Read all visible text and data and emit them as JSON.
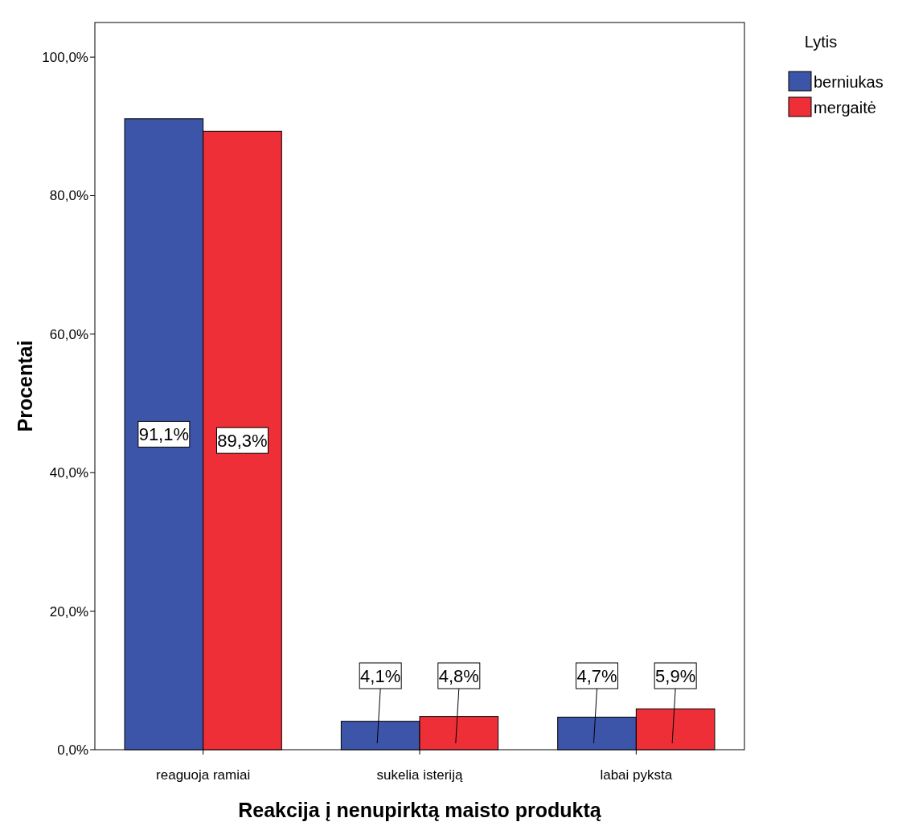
{
  "chart_data": {
    "type": "bar",
    "xlabel": "Reakcija į nenupirktą maisto produktą",
    "ylabel": "Procentai",
    "legend_title": "Lytis",
    "legend": "top right",
    "grid": false,
    "categories": [
      "reaguoja ramiai",
      "sukelia isteriją",
      "labai pyksta"
    ],
    "series": [
      {
        "name": "berniukas",
        "color": "#3d55a8",
        "values": [
          91.1,
          4.1,
          4.7
        ],
        "value_labels": [
          "91,1%",
          "4,1%",
          "4,7%"
        ]
      },
      {
        "name": "mergaitė",
        "color": "#ee2f37",
        "values": [
          89.3,
          4.8,
          5.9
        ],
        "value_labels": [
          "89,3%",
          "4,8%",
          "5,9%"
        ]
      }
    ],
    "ylim": [
      0,
      105
    ],
    "yticks": [
      {
        "value": 0,
        "label": "0,0%"
      },
      {
        "value": 20,
        "label": "20,0%"
      },
      {
        "value": 40,
        "label": "40,0%"
      },
      {
        "value": 60,
        "label": "60,0%"
      },
      {
        "value": 80,
        "label": "80,0%"
      },
      {
        "value": 100,
        "label": "100,0%"
      }
    ]
  }
}
